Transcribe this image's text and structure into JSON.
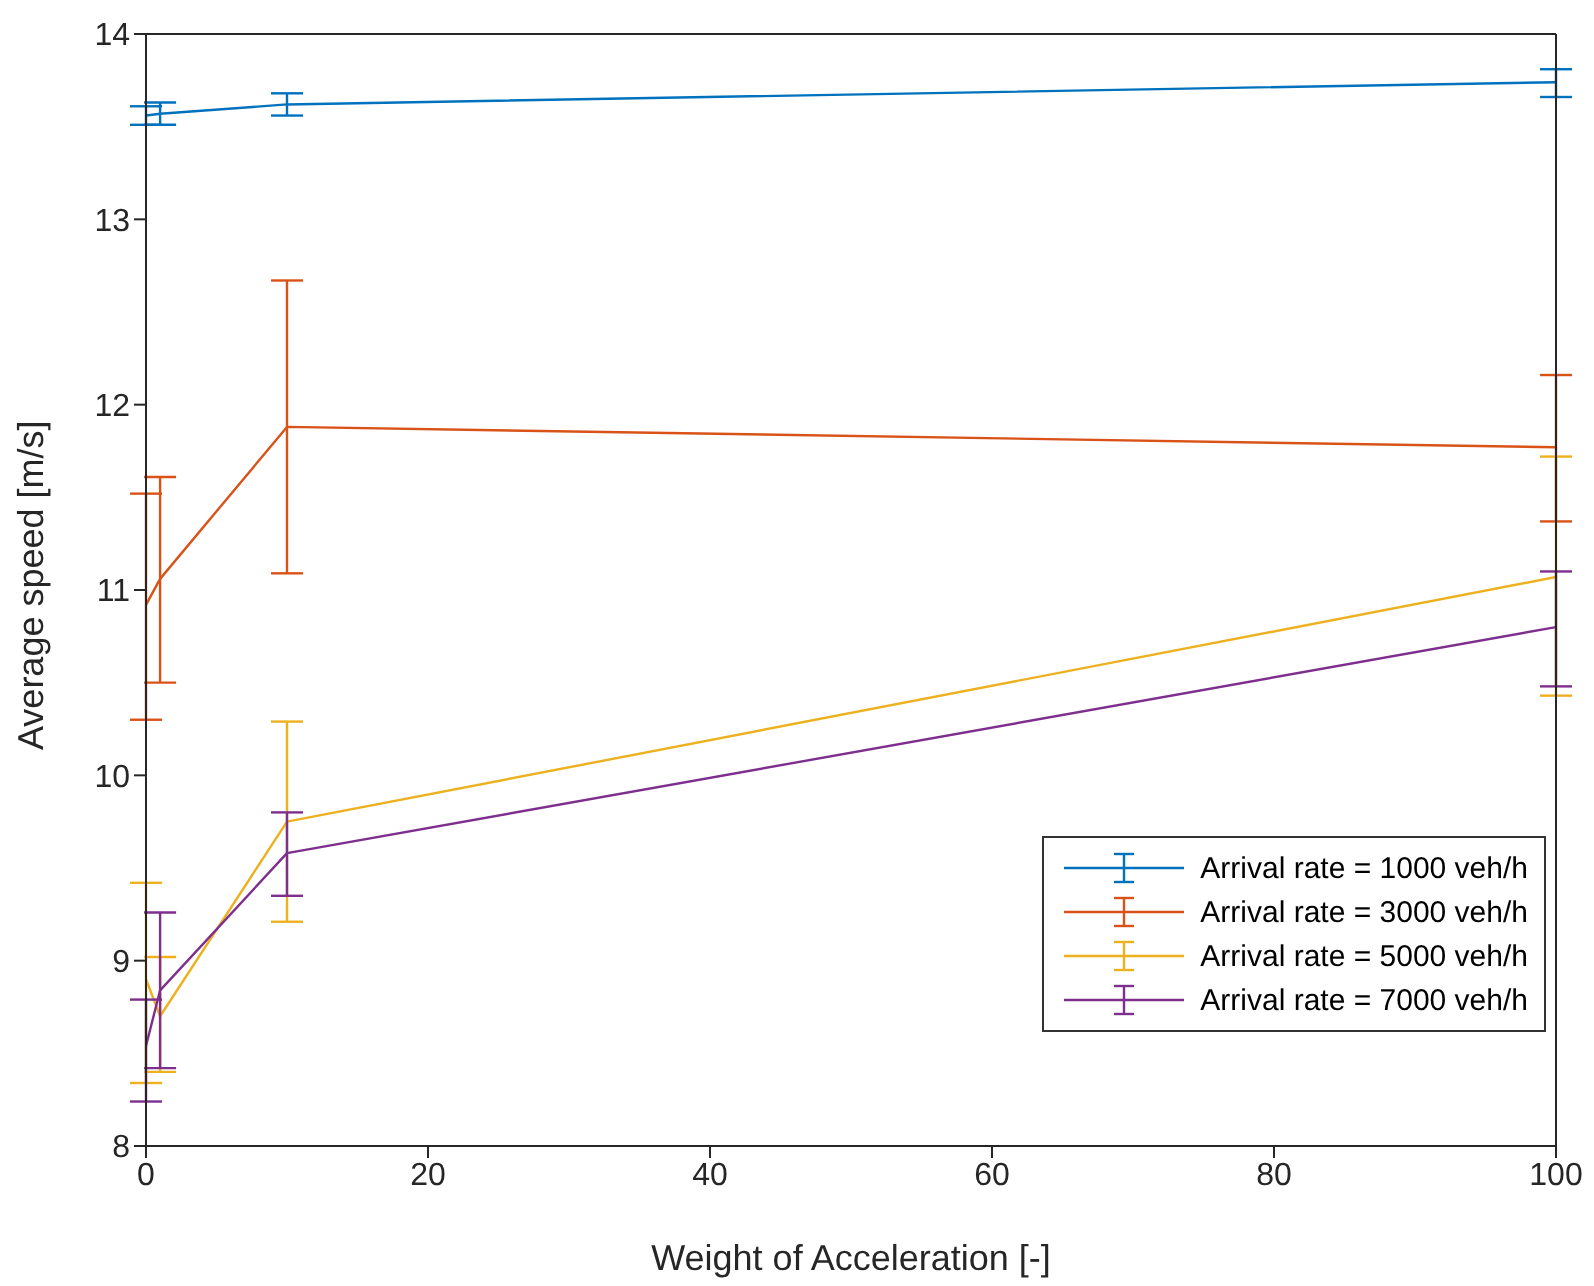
{
  "chart_data": {
    "type": "line",
    "xlabel": "Weight of Acceleration [-]",
    "ylabel": "Average speed [m/s]",
    "x": [
      0,
      1,
      10,
      100
    ],
    "xlim": [
      0,
      100
    ],
    "xticks": [
      0,
      20,
      40,
      60,
      80,
      100
    ],
    "ylim": [
      8,
      14
    ],
    "yticks": [
      8,
      9,
      10,
      11,
      12,
      13,
      14
    ],
    "legend": "bottom right",
    "marker": "none",
    "series": [
      {
        "name": "Arrival rate = 1000 veh/h",
        "color": "#0072bd",
        "values": [
          13.56,
          13.57,
          13.62,
          13.74
        ],
        "errors": [
          [
            13.51,
            13.61
          ],
          [
            13.51,
            13.63
          ],
          [
            13.56,
            13.68
          ],
          [
            13.66,
            13.81
          ]
        ]
      },
      {
        "name": "Arrival rate = 3000 veh/h",
        "color": "#d95319",
        "values": [
          10.92,
          11.06,
          11.88,
          11.77
        ],
        "errors": [
          [
            10.3,
            11.52
          ],
          [
            10.5,
            11.61
          ],
          [
            11.09,
            12.67
          ],
          [
            11.37,
            12.16
          ]
        ]
      },
      {
        "name": "Arrival rate = 5000 veh/h",
        "color": "#edb120",
        "values": [
          8.9,
          8.7,
          9.75,
          11.07
        ],
        "errors": [
          [
            8.34,
            9.42
          ],
          [
            8.4,
            9.02
          ],
          [
            9.21,
            10.29
          ],
          [
            10.43,
            11.72
          ]
        ]
      },
      {
        "name": "Arrival rate = 7000 veh/h",
        "color": "#7e2f8e",
        "values": [
          8.54,
          8.84,
          9.58,
          10.8
        ],
        "errors": [
          [
            8.24,
            8.79
          ],
          [
            8.42,
            9.26
          ],
          [
            9.35,
            9.8
          ],
          [
            10.48,
            11.1
          ]
        ]
      }
    ]
  }
}
